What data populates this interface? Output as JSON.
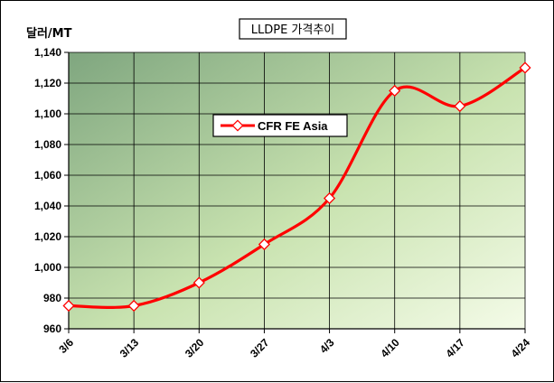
{
  "chart_data": {
    "type": "line",
    "title": "LLDPE 가격추이",
    "ylabel": "달러/MT",
    "xlabel": "",
    "categories": [
      "3/6",
      "3/13",
      "3/20",
      "3/27",
      "4/3",
      "4/10",
      "4/17",
      "4/24"
    ],
    "series": [
      {
        "name": "CFR FE Asia",
        "values": [
          975,
          975,
          990,
          1015,
          1045,
          1115,
          1105,
          1130
        ],
        "color": "#ff0000"
      }
    ],
    "ylim": [
      960,
      1140
    ],
    "yticks": [
      960,
      980,
      1000,
      1020,
      1040,
      1060,
      1080,
      1100,
      1120,
      1140
    ],
    "ytick_labels": [
      "960",
      "980",
      "1,000",
      "1,020",
      "1,040",
      "1,060",
      "1,080",
      "1,100",
      "1,120",
      "1,140"
    ],
    "grid": true,
    "legend_position": "center-left",
    "smoothed": true,
    "plot_background": "gradient dark green to light green"
  }
}
